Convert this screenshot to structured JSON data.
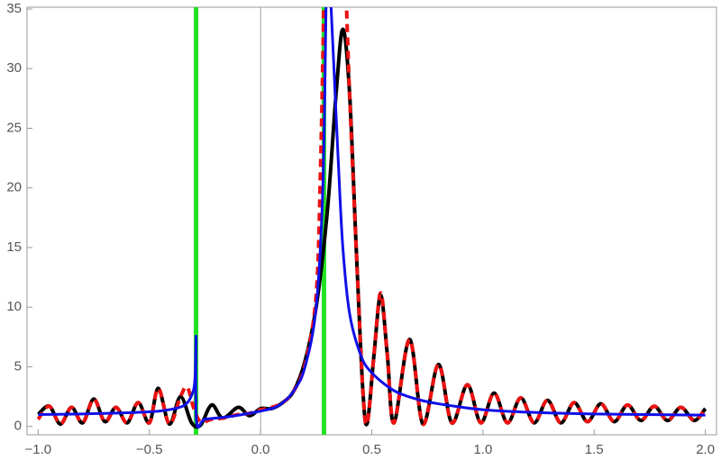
{
  "chart_data": {
    "type": "line",
    "xlim": [
      -1.05,
      2.05
    ],
    "ylim": [
      -0.7,
      35.15
    ],
    "xticks": [
      {
        "value": -1.0,
        "label": "−1.0"
      },
      {
        "value": -0.5,
        "label": "−0.5"
      },
      {
        "value": 0.0,
        "label": "0.0"
      },
      {
        "value": 0.5,
        "label": "0.5"
      },
      {
        "value": 1.0,
        "label": "1.0"
      },
      {
        "value": 1.5,
        "label": "1.5"
      },
      {
        "value": 2.0,
        "label": "2.0"
      }
    ],
    "yticks": [
      0,
      5,
      10,
      15,
      20,
      25,
      30,
      35
    ],
    "vlines": {
      "color": "#22e222",
      "x": [
        -0.29,
        0.285
      ]
    },
    "series": [
      {
        "color": "#000000",
        "dash": false,
        "x": [
          -1.0,
          -0.95,
          -0.9,
          -0.85,
          -0.8,
          -0.75,
          -0.7,
          -0.65,
          -0.6,
          -0.55,
          -0.5,
          -0.46,
          -0.41,
          -0.36,
          -0.31,
          -0.27,
          -0.22,
          -0.17,
          -0.1,
          -0.05,
          0.0,
          0.05,
          0.1,
          0.15,
          0.2,
          0.25,
          0.3,
          0.34,
          0.37,
          0.4,
          0.43,
          0.46,
          0.48,
          0.51,
          0.54,
          0.57,
          0.6,
          0.67,
          0.73,
          0.8,
          0.86,
          0.93,
          0.99,
          1.05,
          1.11,
          1.17,
          1.23,
          1.29,
          1.35,
          1.41,
          1.47,
          1.53,
          1.59,
          1.65,
          1.71,
          1.77,
          1.83,
          1.89,
          1.95,
          2.0
        ],
        "values": [
          1.0,
          1.7,
          0.2,
          1.6,
          0.3,
          2.3,
          0.4,
          1.6,
          0.3,
          2.0,
          0.3,
          3.2,
          0.2,
          2.5,
          0.3,
          0.1,
          1.8,
          0.7,
          1.6,
          0.9,
          1.5,
          1.5,
          2.0,
          3.0,
          5.5,
          10,
          18,
          28,
          33.3,
          28,
          15,
          3,
          0.3,
          6,
          11,
          6,
          0.3,
          7.3,
          0.2,
          5.2,
          0.3,
          3.5,
          0.3,
          2.8,
          0.3,
          2.4,
          0.3,
          2.2,
          0.3,
          2.0,
          0.4,
          1.9,
          0.4,
          1.8,
          0.5,
          1.7,
          0.5,
          1.6,
          0.5,
          1.5
        ]
      },
      {
        "color": "#ee1111",
        "dash": true,
        "x": [
          -1.0,
          -0.95,
          -0.9,
          -0.85,
          -0.8,
          -0.75,
          -0.7,
          -0.65,
          -0.6,
          -0.55,
          -0.5,
          -0.46,
          -0.41,
          -0.36,
          -0.33,
          -0.3,
          -0.27,
          -0.22,
          -0.17,
          -0.1,
          -0.05,
          0.0,
          0.05,
          0.1,
          0.15,
          0.2,
          0.25,
          0.27,
          0.285,
          0.33,
          0.385,
          0.4,
          0.43,
          0.46,
          0.48,
          0.51,
          0.54,
          0.57,
          0.6,
          0.67,
          0.73,
          0.8,
          0.86,
          0.93,
          0.99,
          1.05,
          1.11,
          1.17,
          1.23,
          1.29,
          1.35,
          1.41,
          1.47,
          1.53,
          1.59,
          1.65,
          1.71,
          1.77,
          1.83,
          1.89,
          1.95,
          2.0
        ],
        "values": [
          0.6,
          1.7,
          0.2,
          1.6,
          0.3,
          2.3,
          0.4,
          1.6,
          0.3,
          2.0,
          0.3,
          3.2,
          0.2,
          2.5,
          3.3,
          1.5,
          0.4,
          0.6,
          0.7,
          1.0,
          1.1,
          1.4,
          1.6,
          2.0,
          3.0,
          5.2,
          11,
          22,
          36,
          null,
          36,
          28,
          15,
          3,
          0.3,
          6,
          11.2,
          6,
          0.3,
          7.3,
          0.2,
          5.2,
          0.3,
          3.5,
          0.3,
          2.8,
          0.3,
          2.4,
          0.3,
          2.2,
          0.3,
          2.0,
          0.4,
          1.9,
          0.4,
          1.8,
          0.5,
          1.7,
          0.5,
          1.6,
          0.5,
          1.5
        ]
      },
      {
        "color": "#1010e8",
        "dash": false,
        "x": [
          -1.0,
          -0.8,
          -0.6,
          -0.45,
          -0.35,
          -0.31,
          -0.295,
          -0.29,
          -0.288,
          -0.25,
          -0.15,
          -0.05,
          0.05,
          0.1,
          0.15,
          0.2,
          0.25,
          0.28,
          0.295,
          0.305,
          0.315,
          0.33,
          0.35,
          0.37,
          0.4,
          0.45,
          0.5,
          0.6,
          0.7,
          0.8,
          1.0,
          1.2,
          1.5,
          2.0
        ],
        "values": [
          1.0,
          1.05,
          1.15,
          1.3,
          1.7,
          2.6,
          4,
          7.5,
          0.4,
          0.6,
          0.8,
          1.1,
          1.5,
          2,
          3,
          5,
          10,
          20,
          36,
          null,
          36,
          30,
          22,
          15,
          9.5,
          6,
          4.5,
          3,
          2.3,
          1.9,
          1.4,
          1.2,
          1.05,
          0.95
        ]
      }
    ]
  }
}
